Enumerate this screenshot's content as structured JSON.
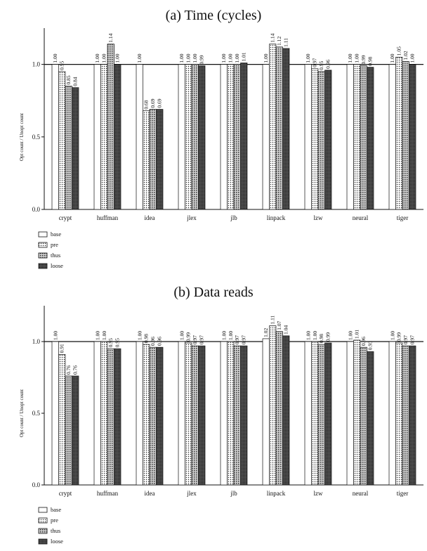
{
  "chart_data": [
    {
      "type": "bar",
      "title": "(a) Time (cycles)",
      "ylabel": "Opt count / Unopt count",
      "ylim": [
        0,
        1.25
      ],
      "yticks": [
        "0.0",
        "0.5",
        "1.0"
      ],
      "categories": [
        "crypt",
        "huffman",
        "idea",
        "jlex",
        "jlb",
        "linpack",
        "lzw",
        "neural",
        "tiger"
      ],
      "series": [
        {
          "name": "base",
          "values": [
            1.0,
            1.0,
            1.0,
            1.0,
            1.0,
            1.0,
            1.0,
            1.0,
            1.0
          ]
        },
        {
          "name": "pre",
          "values": [
            0.95,
            1.0,
            0.68,
            1.0,
            1.0,
            1.14,
            0.97,
            1.0,
            1.05
          ]
        },
        {
          "name": "thus",
          "values": [
            0.85,
            1.14,
            0.69,
            1.0,
            1.0,
            1.12,
            0.95,
            0.99,
            1.02
          ]
        },
        {
          "name": "loose",
          "values": [
            0.84,
            1.0,
            0.69,
            0.99,
            1.01,
            1.11,
            0.96,
            0.98,
            1.0
          ]
        }
      ],
      "legend": "bottom-left"
    },
    {
      "type": "bar",
      "title": "(b) Data reads",
      "ylabel": "Opt count / Unopt count",
      "ylim": [
        0,
        1.25
      ],
      "yticks": [
        "0.0",
        "0.5",
        "1.0"
      ],
      "categories": [
        "crypt",
        "huffman",
        "idea",
        "jlex",
        "jlb",
        "linpack",
        "lzw",
        "neural",
        "tiger"
      ],
      "series": [
        {
          "name": "base",
          "values": [
            1.0,
            1.0,
            1.0,
            1.0,
            1.0,
            1.02,
            1.0,
            1.0,
            1.0
          ]
        },
        {
          "name": "pre",
          "values": [
            0.91,
            1.0,
            0.98,
            0.99,
            1.0,
            1.11,
            1.0,
            1.01,
            0.99
          ]
        },
        {
          "name": "thus",
          "values": [
            0.76,
            0.95,
            0.96,
            0.97,
            0.97,
            1.07,
            0.98,
            0.96,
            0.97
          ]
        },
        {
          "name": "loose",
          "values": [
            0.76,
            0.95,
            0.96,
            0.97,
            0.97,
            1.04,
            0.99,
            0.93,
            0.97
          ]
        }
      ],
      "legend": "bottom-left"
    }
  ]
}
